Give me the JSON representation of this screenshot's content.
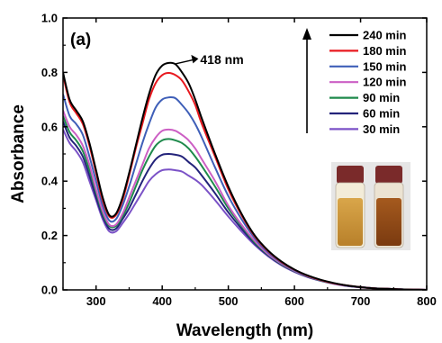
{
  "chart_data": {
    "type": "line",
    "panel_label": "(a)",
    "xlabel": "Wavelength (nm)",
    "ylabel": "Absorbance",
    "xlim": [
      250,
      800
    ],
    "ylim": [
      0.0,
      1.0
    ],
    "x_ticks": [
      300,
      400,
      500,
      600,
      700,
      800
    ],
    "y_ticks": [
      0.0,
      0.2,
      0.4,
      0.6,
      0.8,
      1.0
    ],
    "y_tick_labels": [
      "0.0",
      "0.2",
      "0.4",
      "0.6",
      "0.8",
      "1.0"
    ],
    "grid": false,
    "legend_position": "top-right",
    "annotation": {
      "text": "418 nm",
      "x": 418,
      "y": 0.835
    },
    "inset": "photo of two vials: pale yellow solution and orange-brown solution with red caps",
    "x": [
      250,
      260,
      270,
      280,
      290,
      300,
      310,
      320,
      330,
      340,
      350,
      360,
      370,
      380,
      390,
      400,
      410,
      420,
      430,
      440,
      450,
      460,
      480,
      500,
      520,
      540,
      560,
      580,
      600,
      620,
      640,
      660,
      680,
      700,
      720,
      740,
      760,
      780,
      800
    ],
    "series": [
      {
        "name": "240 min",
        "color": "#000000",
        "values": [
          0.8,
          0.7,
          0.66,
          0.62,
          0.54,
          0.44,
          0.34,
          0.275,
          0.28,
          0.34,
          0.43,
          0.53,
          0.63,
          0.72,
          0.79,
          0.825,
          0.835,
          0.83,
          0.8,
          0.76,
          0.7,
          0.63,
          0.5,
          0.38,
          0.28,
          0.2,
          0.145,
          0.105,
          0.075,
          0.053,
          0.037,
          0.025,
          0.016,
          0.01,
          0.006,
          0.004,
          0.002,
          0.001,
          0.0
        ]
      },
      {
        "name": "180 min",
        "color": "#e8191f",
        "values": [
          0.79,
          0.69,
          0.65,
          0.61,
          0.53,
          0.43,
          0.33,
          0.27,
          0.275,
          0.33,
          0.42,
          0.52,
          0.61,
          0.7,
          0.76,
          0.79,
          0.798,
          0.79,
          0.77,
          0.73,
          0.68,
          0.61,
          0.49,
          0.37,
          0.275,
          0.197,
          0.143,
          0.103,
          0.074,
          0.052,
          0.036,
          0.024,
          0.016,
          0.01,
          0.006,
          0.004,
          0.002,
          0.001,
          0.0
        ]
      },
      {
        "name": "150 min",
        "color": "#3f5fb8",
        "values": [
          0.72,
          0.64,
          0.61,
          0.57,
          0.49,
          0.4,
          0.31,
          0.255,
          0.26,
          0.31,
          0.38,
          0.46,
          0.54,
          0.61,
          0.67,
          0.7,
          0.708,
          0.705,
          0.68,
          0.65,
          0.61,
          0.56,
          0.45,
          0.345,
          0.26,
          0.19,
          0.138,
          0.1,
          0.072,
          0.051,
          0.035,
          0.024,
          0.015,
          0.01,
          0.006,
          0.004,
          0.002,
          0.001,
          0.0
        ]
      },
      {
        "name": "120 min",
        "color": "#cc5fc4",
        "values": [
          0.66,
          0.6,
          0.57,
          0.53,
          0.46,
          0.37,
          0.29,
          0.24,
          0.24,
          0.28,
          0.34,
          0.4,
          0.46,
          0.52,
          0.56,
          0.585,
          0.59,
          0.585,
          0.57,
          0.55,
          0.52,
          0.48,
          0.4,
          0.31,
          0.24,
          0.18,
          0.132,
          0.097,
          0.07,
          0.05,
          0.035,
          0.023,
          0.015,
          0.01,
          0.006,
          0.004,
          0.002,
          0.001,
          0.0
        ]
      },
      {
        "name": "90 min",
        "color": "#1f8a4c",
        "values": [
          0.64,
          0.58,
          0.55,
          0.51,
          0.44,
          0.36,
          0.28,
          0.235,
          0.235,
          0.27,
          0.32,
          0.38,
          0.44,
          0.49,
          0.53,
          0.55,
          0.555,
          0.55,
          0.54,
          0.52,
          0.49,
          0.455,
          0.38,
          0.3,
          0.235,
          0.175,
          0.13,
          0.095,
          0.069,
          0.049,
          0.034,
          0.023,
          0.015,
          0.01,
          0.006,
          0.004,
          0.002,
          0.001,
          0.0
        ]
      },
      {
        "name": "60 min",
        "color": "#23237a",
        "values": [
          0.62,
          0.56,
          0.53,
          0.49,
          0.42,
          0.34,
          0.27,
          0.225,
          0.225,
          0.26,
          0.3,
          0.35,
          0.4,
          0.445,
          0.48,
          0.497,
          0.5,
          0.497,
          0.49,
          0.47,
          0.45,
          0.42,
          0.355,
          0.285,
          0.225,
          0.17,
          0.127,
          0.093,
          0.068,
          0.048,
          0.034,
          0.023,
          0.015,
          0.01,
          0.006,
          0.004,
          0.002,
          0.001,
          0.0
        ]
      },
      {
        "name": "30 min",
        "color": "#7b52c7",
        "values": [
          0.59,
          0.54,
          0.51,
          0.47,
          0.4,
          0.33,
          0.26,
          0.215,
          0.215,
          0.245,
          0.28,
          0.32,
          0.36,
          0.4,
          0.425,
          0.44,
          0.443,
          0.44,
          0.435,
          0.42,
          0.405,
          0.385,
          0.33,
          0.27,
          0.215,
          0.165,
          0.124,
          0.091,
          0.066,
          0.047,
          0.033,
          0.022,
          0.014,
          0.009,
          0.006,
          0.004,
          0.002,
          0.001,
          0.0
        ]
      }
    ]
  }
}
